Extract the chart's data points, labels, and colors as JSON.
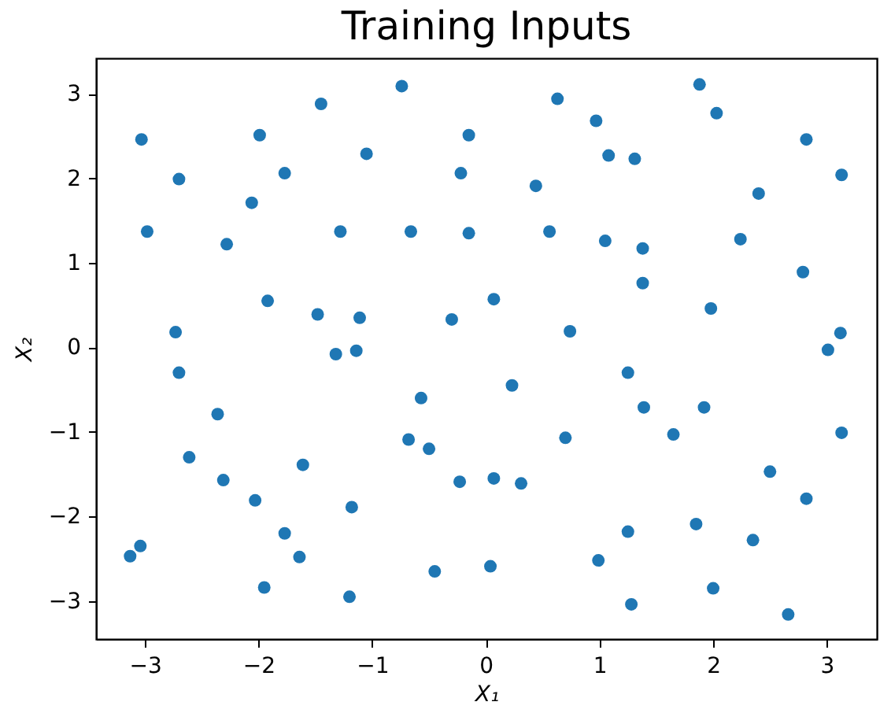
{
  "chart_data": {
    "type": "scatter",
    "title": "Training Inputs",
    "xlabel": "X₁",
    "ylabel": "X₂",
    "color": "#1f77b4",
    "marker": "circle",
    "x": [
      -3.03,
      -1.45,
      -1.99,
      -2.7,
      -1.77,
      -2.06,
      -2.98,
      -2.28,
      -1.28,
      -1.92,
      -1.48,
      -1.11,
      -2.73,
      -1.32,
      -1.14,
      -0.74,
      0.63,
      0.97,
      -0.15,
      -1.05,
      1.08,
      -0.22,
      0.44,
      -0.66,
      -0.15,
      0.56,
      1.05,
      0.07,
      -0.3,
      0.74,
      1.88,
      2.03,
      2.82,
      1.31,
      3.13,
      2.4,
      1.38,
      2.24,
      2.79,
      1.38,
      1.98,
      3.12,
      3.01,
      -2.7,
      -2.36,
      -2.61,
      -1.61,
      -2.31,
      -2.03,
      -1.18,
      -1.77,
      -3.04,
      -3.13,
      -1.64,
      -1.95,
      -1.2,
      0.23,
      -0.57,
      -0.68,
      -0.5,
      0.7,
      -0.23,
      0.07,
      0.31,
      -0.45,
      0.04,
      0.99,
      1.25,
      1.39,
      1.92,
      1.65,
      3.13,
      2.5,
      2.82,
      1.25,
      1.85,
      2.35,
      2.0,
      1.28,
      2.66
    ],
    "values": [
      2.46,
      2.88,
      2.51,
      1.99,
      2.06,
      1.71,
      1.37,
      1.22,
      1.37,
      0.55,
      0.39,
      0.35,
      0.18,
      -0.08,
      -0.04,
      3.09,
      2.94,
      2.68,
      2.51,
      2.29,
      2.27,
      2.06,
      1.91,
      1.37,
      1.35,
      1.37,
      1.26,
      0.57,
      0.33,
      0.19,
      3.11,
      2.77,
      2.46,
      2.23,
      2.04,
      1.82,
      1.17,
      1.28,
      0.89,
      0.76,
      0.46,
      0.17,
      -0.03,
      -0.3,
      -0.79,
      -1.3,
      -1.39,
      -1.57,
      -1.81,
      -1.89,
      -2.2,
      -2.35,
      -2.47,
      -2.48,
      -2.84,
      -2.95,
      -0.45,
      -0.6,
      -1.09,
      -1.2,
      -1.07,
      -1.59,
      -1.55,
      -1.61,
      -2.65,
      -2.59,
      -2.52,
      -0.3,
      -0.71,
      -0.71,
      -1.03,
      -1.01,
      -1.47,
      -1.79,
      -2.18,
      -2.09,
      -2.28,
      -2.85,
      -3.04,
      -3.16
    ],
    "xlim": [
      -3.43,
      3.44
    ],
    "ylim": [
      -3.45,
      3.42
    ],
    "xticks": [
      -3,
      -2,
      -1,
      0,
      1,
      2,
      3
    ],
    "yticks": [
      -3,
      -2,
      -1,
      0,
      1,
      2,
      3
    ]
  }
}
